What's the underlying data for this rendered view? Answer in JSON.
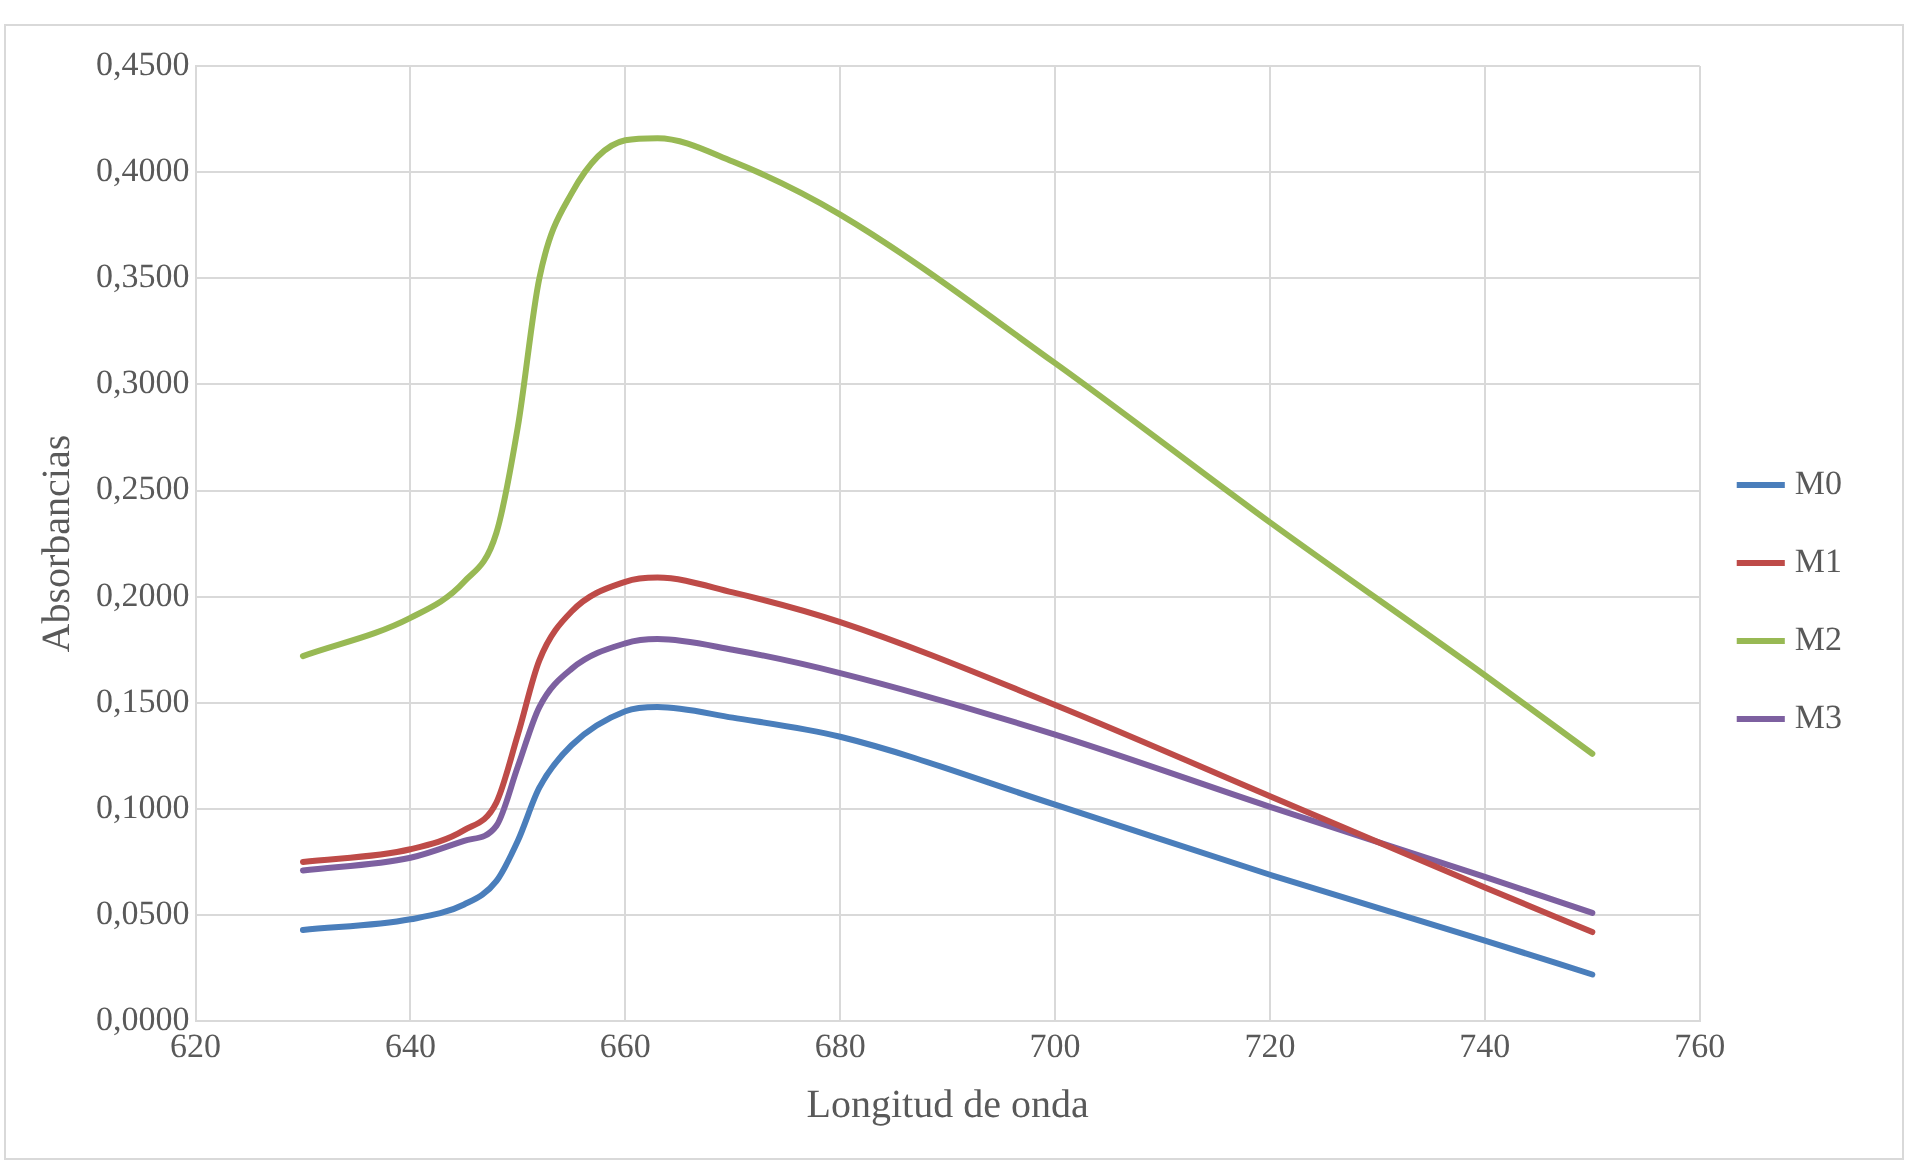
{
  "chart_data": {
    "type": "line",
    "xlabel": "Longitud de onda",
    "ylabel": "Absorbancias",
    "x": [
      630,
      640,
      645,
      648,
      650,
      652,
      655,
      660,
      663,
      670,
      680,
      700,
      720,
      740,
      750
    ],
    "series": [
      {
        "name": "M0",
        "color": "#4a7ebb",
        "values": [
          0.043,
          0.048,
          0.055,
          0.066,
          0.085,
          0.11,
          0.13,
          0.146,
          0.148,
          0.143,
          0.134,
          0.102,
          0.069,
          0.038,
          0.022
        ]
      },
      {
        "name": "M1",
        "color": "#be4b48",
        "values": [
          0.075,
          0.081,
          0.09,
          0.103,
          0.135,
          0.17,
          0.193,
          0.207,
          0.209,
          0.202,
          0.188,
          0.149,
          0.106,
          0.063,
          0.042
        ]
      },
      {
        "name": "M2",
        "color": "#98b954",
        "values": [
          0.172,
          0.19,
          0.207,
          0.23,
          0.28,
          0.35,
          0.39,
          0.415,
          0.416,
          0.405,
          0.38,
          0.31,
          0.235,
          0.163,
          0.126
        ]
      },
      {
        "name": "M3",
        "color": "#7d60a0",
        "values": [
          0.071,
          0.077,
          0.085,
          0.092,
          0.12,
          0.148,
          0.166,
          0.178,
          0.18,
          0.175,
          0.164,
          0.135,
          0.101,
          0.068,
          0.051
        ]
      }
    ],
    "xlim": [
      620,
      760
    ],
    "xticks": [
      620,
      640,
      660,
      680,
      700,
      720,
      740,
      760
    ],
    "ylim": [
      0,
      0.45
    ],
    "yticks": [
      {
        "value": 0,
        "label": "0,0000"
      },
      {
        "value": 0.05,
        "label": "0,0500"
      },
      {
        "value": 0.1,
        "label": "0,1000"
      },
      {
        "value": 0.15,
        "label": "0,1500"
      },
      {
        "value": 0.2,
        "label": "0,2000"
      },
      {
        "value": 0.25,
        "label": "0,2500"
      },
      {
        "value": 0.3,
        "label": "0,3000"
      },
      {
        "value": 0.35,
        "label": "0,3500"
      },
      {
        "value": 0.4,
        "label": "0,4000"
      },
      {
        "value": 0.45,
        "label": "0,4500"
      }
    ],
    "grid": true,
    "legend": "right",
    "marker": "none",
    "line_style": "solid"
  }
}
